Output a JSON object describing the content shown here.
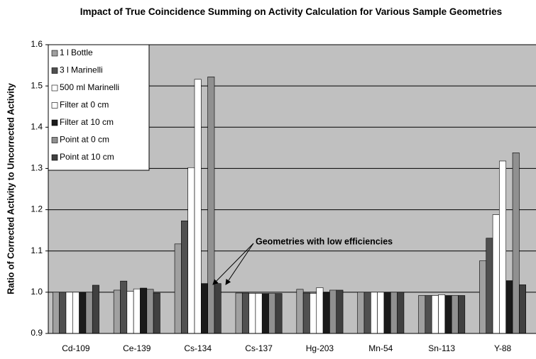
{
  "chart_data": {
    "type": "bar",
    "title": "Impact of True Coincidence Summing on Activity Calculation for Various Sample Geometries",
    "ylabel": "Ratio of Corrected Activity to Uncorrected Activity",
    "annotation": "Geometries with low efficiencies",
    "categories": [
      "Cd-109",
      "Ce-139",
      "Cs-134",
      "Cs-137",
      "Hg-203",
      "Mn-54",
      "Sn-113",
      "Y-88"
    ],
    "series": [
      {
        "name": "1 l Bottle",
        "color": "#a0a0a0",
        "values": [
          1.0,
          1.005,
          1.117,
          0.998,
          1.007,
          1.0,
          0.992,
          1.076
        ]
      },
      {
        "name": "3 l Marinelli",
        "color": "#505050",
        "values": [
          1.0,
          1.027,
          1.173,
          0.998,
          0.998,
          1.0,
          0.992,
          1.131
        ]
      },
      {
        "name": "500 ml Marinelli",
        "color": "#ffffff",
        "values": [
          1.0,
          1.002,
          1.302,
          0.997,
          0.997,
          1.0,
          0.992,
          1.188
        ]
      },
      {
        "name": "Filter at 0 cm",
        "color": "#ffffff",
        "values": [
          1.0,
          1.008,
          1.516,
          0.997,
          1.011,
          1.0,
          0.994,
          1.318
        ]
      },
      {
        "name": "Filter at 10 cm",
        "color": "#1a1a1a",
        "values": [
          1.0,
          1.01,
          1.021,
          0.997,
          0.999,
          1.0,
          0.992,
          1.028
        ]
      },
      {
        "name": "Point at 0 cm",
        "color": "#909090",
        "values": [
          1.0,
          1.007,
          1.522,
          0.997,
          1.005,
          1.0,
          0.992,
          1.338
        ]
      },
      {
        "name": "Point at 10 cm",
        "color": "#404040",
        "values": [
          1.017,
          0.998,
          1.021,
          0.997,
          1.005,
          1.0,
          0.992,
          1.018
        ]
      }
    ],
    "ylim": [
      0.9,
      1.6
    ],
    "yticks": [
      0.9,
      {
        "value": 1.0,
        "label": "1.0"
      },
      1.1,
      1.2,
      1.3,
      1.4,
      1.5,
      1.6
    ],
    "grid": true,
    "legend": "upper left"
  }
}
